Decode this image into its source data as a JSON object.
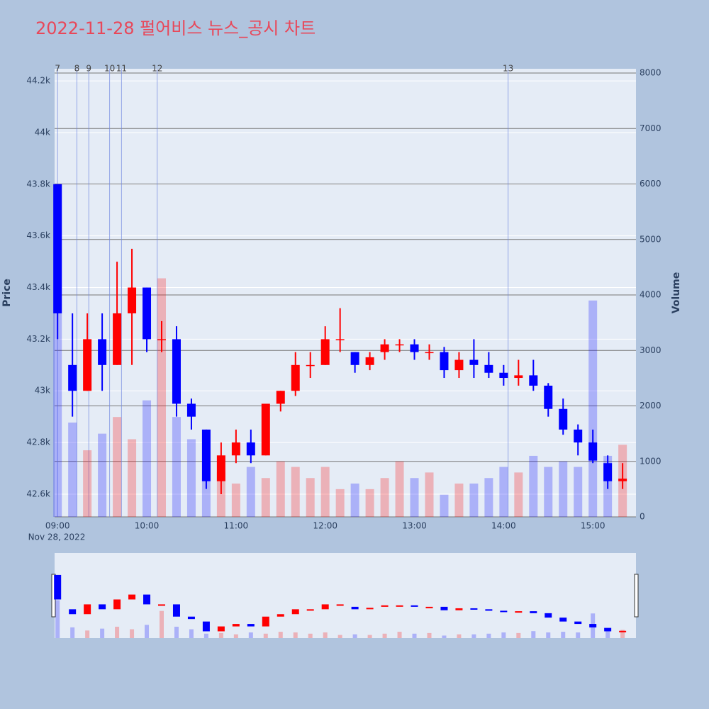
{
  "chart_data": {
    "type": "candlestick",
    "title": "2022-11-28 펄어비스 뉴스_공시 차트",
    "y_title": "Price",
    "y2_title": "Volume",
    "date_label": "Nov 28, 2022",
    "increasing_color": "#ff0000",
    "decreasing_color": "#0000ff",
    "x": [
      "09:00",
      "09:10",
      "09:20",
      "09:30",
      "09:40",
      "09:50",
      "10:00",
      "10:10",
      "10:20",
      "10:30",
      "10:40",
      "10:50",
      "11:00",
      "11:10",
      "11:20",
      "11:30",
      "11:40",
      "11:50",
      "12:00",
      "12:10",
      "12:20",
      "12:30",
      "12:40",
      "12:50",
      "13:00",
      "13:10",
      "13:20",
      "13:30",
      "13:40",
      "13:50",
      "14:00",
      "14:10",
      "14:20",
      "14:30",
      "14:40",
      "14:50",
      "15:00",
      "15:10",
      "15:20"
    ],
    "open": [
      43800,
      43100,
      43000,
      43200,
      43100,
      43300,
      43400,
      43200,
      43200,
      42950,
      42850,
      42650,
      42750,
      42800,
      42750,
      42950,
      43000,
      43100,
      43100,
      43200,
      43150,
      43100,
      43150,
      43180,
      43180,
      43150,
      43150,
      43080,
      43120,
      43100,
      43070,
      43050,
      43060,
      43020,
      42930,
      42850,
      42800,
      42720,
      42650
    ],
    "high": [
      43800,
      43300,
      43300,
      43300,
      43500,
      43550,
      43400,
      43270,
      43250,
      42970,
      42850,
      42800,
      42850,
      42850,
      42950,
      43000,
      43150,
      43150,
      43250,
      43320,
      43150,
      43150,
      43200,
      43200,
      43200,
      43180,
      43170,
      43150,
      43200,
      43150,
      43100,
      43120,
      43120,
      43030,
      42970,
      42870,
      42850,
      42750,
      42720
    ],
    "low": [
      43200,
      42900,
      43000,
      43000,
      43100,
      43100,
      43150,
      43150,
      42900,
      42850,
      42620,
      42600,
      42720,
      42720,
      42750,
      42920,
      42980,
      43050,
      43100,
      43150,
      43070,
      43080,
      43120,
      43150,
      43120,
      43120,
      43050,
      43050,
      43050,
      43050,
      43020,
      43020,
      43000,
      42900,
      42830,
      42750,
      42720,
      42620,
      42620
    ],
    "close": [
      43300,
      43000,
      43200,
      43100,
      43300,
      43400,
      43200,
      43200,
      42950,
      42900,
      42650,
      42750,
      42800,
      42750,
      42950,
      43000,
      43100,
      43100,
      43200,
      43200,
      43100,
      43130,
      43180,
      43180,
      43150,
      43150,
      43080,
      43120,
      43100,
      43070,
      43050,
      43060,
      43020,
      42930,
      42850,
      42800,
      42730,
      42650,
      42660
    ],
    "volume": [
      6000,
      1700,
      1200,
      1500,
      1800,
      1400,
      2100,
      4300,
      1800,
      1400,
      700,
      800,
      600,
      900,
      700,
      1000,
      900,
      700,
      900,
      500,
      600,
      500,
      700,
      1000,
      700,
      800,
      400,
      600,
      600,
      700,
      900,
      800,
      1100,
      900,
      1000,
      900,
      3900,
      1100,
      1300
    ],
    "xlim": [
      "08:58",
      "15:29"
    ],
    "xticks": [
      "09:00",
      "10:00",
      "11:00",
      "12:00",
      "13:00",
      "14:00",
      "15:00"
    ],
    "ylim": [
      42512,
      44247
    ],
    "yticks": [
      {
        "value": 42600,
        "label": "42.6k"
      },
      {
        "value": 42800,
        "label": "42.8k"
      },
      {
        "value": 43000,
        "label": "43k"
      },
      {
        "value": 43200,
        "label": "43.2k"
      },
      {
        "value": 43400,
        "label": "43.4k"
      },
      {
        "value": 43600,
        "label": "43.6k"
      },
      {
        "value": 43800,
        "label": "43.8k"
      },
      {
        "value": 44000,
        "label": "44k"
      },
      {
        "value": 44200,
        "label": "44.2k"
      }
    ],
    "y2lim": [
      0,
      8077
    ],
    "y2ticks": [
      0,
      1000,
      2000,
      3000,
      4000,
      5000,
      6000,
      7000,
      8000
    ],
    "news": [
      {
        "label": "7",
        "x": "09:00"
      },
      {
        "label": "8",
        "x": "09:13"
      },
      {
        "label": "9",
        "x": "09:21"
      },
      {
        "label": "10",
        "x": "09:35"
      },
      {
        "label": "11",
        "x": "09:43"
      },
      {
        "label": "12",
        "x": "10:07"
      },
      {
        "label": "13",
        "x": "14:03"
      }
    ]
  }
}
